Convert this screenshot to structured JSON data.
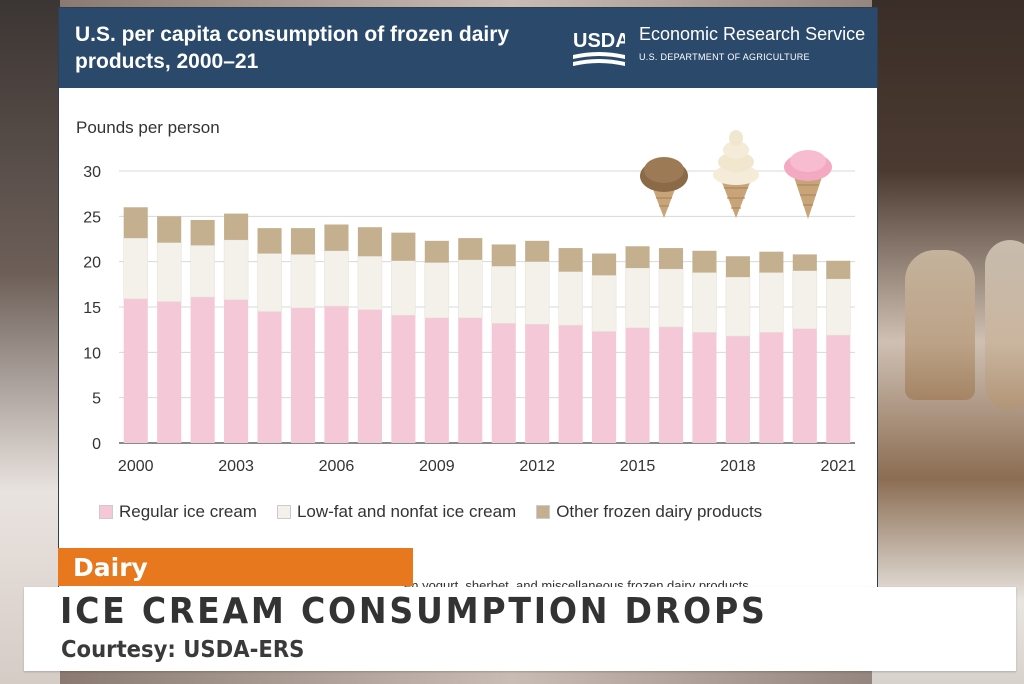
{
  "header": {
    "title": "U.S. per capita consumption of frozen dairy products, 2000–21",
    "agency_name": "Economic Research Service",
    "agency_dept": "U.S. DEPARTMENT OF AGRICULTURE",
    "logo_text": "USDA"
  },
  "chart_data": {
    "type": "bar",
    "stacked": true,
    "title": "U.S. per capita consumption of frozen dairy products, 2000–21",
    "ylabel": "Pounds per person",
    "xlabel": "",
    "ylim": [
      0,
      30
    ],
    "yticks": [
      0,
      5,
      10,
      15,
      20,
      25,
      30
    ],
    "categories": [
      "2000",
      "2001",
      "2002",
      "2003",
      "2004",
      "2005",
      "2006",
      "2007",
      "2008",
      "2009",
      "2010",
      "2011",
      "2012",
      "2013",
      "2014",
      "2015",
      "2016",
      "2017",
      "2018",
      "2019",
      "2020",
      "2021"
    ],
    "xtick_labels": [
      "2000",
      "2003",
      "2006",
      "2009",
      "2012",
      "2015",
      "2018",
      "2021"
    ],
    "grid": true,
    "legend_position": "bottom",
    "series": [
      {
        "name": "Regular ice cream",
        "color": "#f5c8d7",
        "values": [
          15.9,
          15.6,
          16.1,
          15.8,
          14.5,
          14.9,
          15.1,
          14.7,
          14.1,
          13.8,
          13.8,
          13.2,
          13.1,
          13.0,
          12.3,
          12.7,
          12.8,
          12.2,
          11.8,
          12.2,
          12.6,
          11.9
        ]
      },
      {
        "name": "Low-fat and nonfat ice cream",
        "color": "#f3f1ea",
        "values": [
          6.7,
          6.5,
          5.7,
          6.6,
          6.4,
          5.9,
          6.1,
          5.9,
          6.0,
          6.1,
          6.4,
          6.3,
          6.9,
          5.9,
          6.2,
          6.6,
          6.4,
          6.6,
          6.5,
          6.6,
          6.4,
          6.2
        ]
      },
      {
        "name": "Other frozen dairy products",
        "color": "#c4b08e",
        "values": [
          3.4,
          2.9,
          2.8,
          2.9,
          2.8,
          2.9,
          2.9,
          3.2,
          3.1,
          2.4,
          2.4,
          2.4,
          2.3,
          2.6,
          2.4,
          2.4,
          2.3,
          2.4,
          2.3,
          2.3,
          1.8,
          2.0
        ]
      }
    ]
  },
  "footnote": "en yogurt, sherbet, and miscellaneous frozen dairy products.",
  "segment_tab": "Dairy",
  "lower_third": {
    "headline": "ICE CREAM CONSUMPTION DROPS",
    "courtesy": "Courtesy: USDA-ERS"
  }
}
